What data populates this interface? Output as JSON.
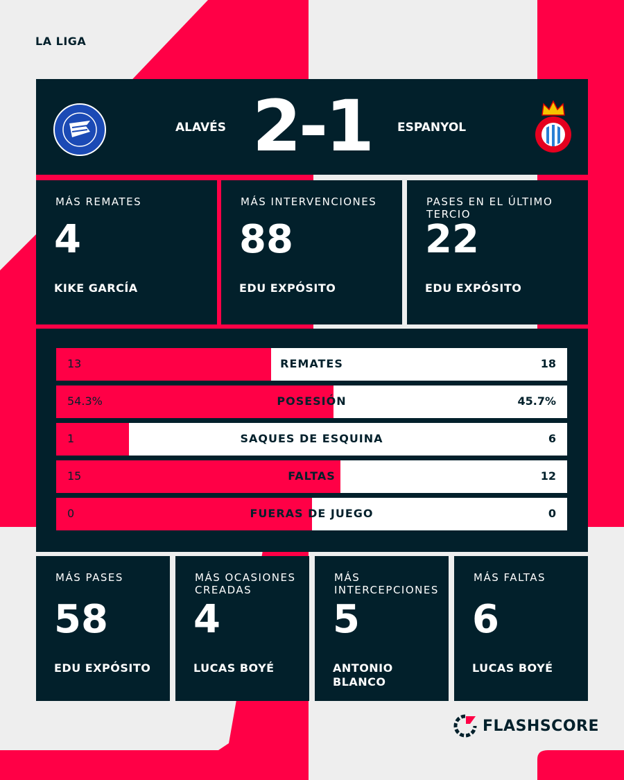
{
  "colors": {
    "accent": "#ff0046",
    "panel": "#02202b",
    "background": "#eeeeee"
  },
  "league": "LA LIGA",
  "match": {
    "home": "ALAVÉS",
    "away": "ESPANYOL",
    "score": "2-1",
    "home_logo_text": "DEPORTIVO ALAVÉS",
    "away_logo_text": "RCD ESPANYOL DE BARCELONA"
  },
  "top_leaders": [
    {
      "label": "MÁS REMATES",
      "value": "4",
      "player": "KIKE GARCÍA"
    },
    {
      "label": "MÁS INTERVENCIONES",
      "value": "88",
      "player": "EDU EXPÓSITO"
    },
    {
      "label": "PASES EN EL ÚLTIMO TERCIO",
      "value": "22",
      "player": "EDU EXPÓSITO"
    }
  ],
  "stats": [
    {
      "name": "REMATES",
      "home": "13",
      "away": "18",
      "home_share": 0.42
    },
    {
      "name": "POSESIÓN",
      "home": "54.3%",
      "away": "45.7%",
      "home_share": 0.543
    },
    {
      "name": "SAQUES DE ESQUINA",
      "home": "1",
      "away": "6",
      "home_share": 0.143
    },
    {
      "name": "FALTAS",
      "home": "15",
      "away": "12",
      "home_share": 0.556
    },
    {
      "name": "FUERAS DE JUEGO",
      "home": "0",
      "away": "0",
      "home_share": 0.5
    }
  ],
  "bottom_leaders": [
    {
      "label": "MÁS PASES",
      "value": "58",
      "player": "EDU EXPÓSITO"
    },
    {
      "label": "MÁS OCASIONES CREADAS",
      "value": "4",
      "player": "LUCAS BOYÉ"
    },
    {
      "label": "MÁS INTERCEPCIONES",
      "value": "5",
      "player": "ANTONIO BLANCO"
    },
    {
      "label": "MÁS FALTAS",
      "value": "6",
      "player": "LUCAS BOYÉ"
    }
  ],
  "brand": "FLASHSCORE"
}
